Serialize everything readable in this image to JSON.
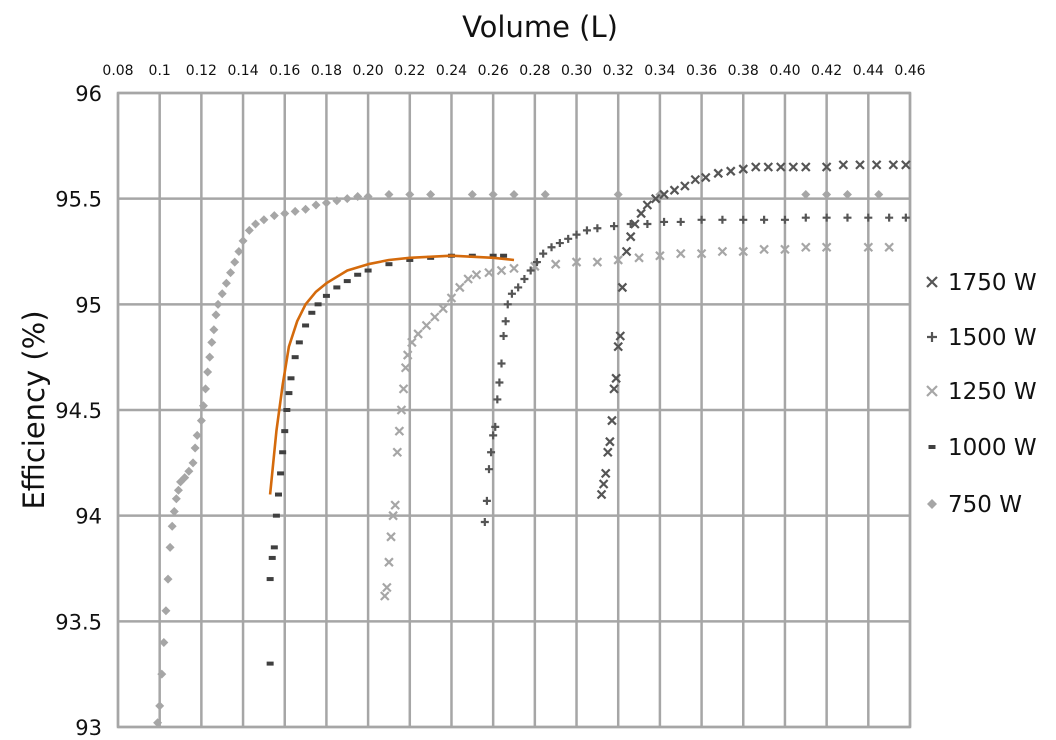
{
  "chart_data": {
    "type": "scatter",
    "title": "",
    "xlabel": "Volume (L)",
    "ylabel": "Efficiency (%)",
    "x_axis_position": "top",
    "xlim": [
      0.08,
      0.46
    ],
    "ylim": [
      93,
      96
    ],
    "x_ticks": [
      "0.08",
      "0.1",
      "0.12",
      "0.14",
      "0.16",
      "0.18",
      "0.20",
      "0.22",
      "0.24",
      "0.26",
      "0.28",
      "0.30",
      "0.32",
      "0.34",
      "0.36",
      "0.38",
      "0.40",
      "0.42",
      "0.44",
      "0.46"
    ],
    "y_ticks": [
      "93",
      "93.5",
      "94",
      "94.5",
      "95",
      "95.5",
      "96"
    ],
    "grid": true,
    "legend_position": "right",
    "series": [
      {
        "name": "1750 W",
        "marker": "x",
        "color": "#555555",
        "points": [
          [
            0.312,
            94.1
          ],
          [
            0.313,
            94.15
          ],
          [
            0.314,
            94.2
          ],
          [
            0.315,
            94.3
          ],
          [
            0.316,
            94.35
          ],
          [
            0.317,
            94.45
          ],
          [
            0.318,
            94.6
          ],
          [
            0.319,
            94.65
          ],
          [
            0.32,
            94.8
          ],
          [
            0.321,
            94.85
          ],
          [
            0.322,
            95.08
          ],
          [
            0.324,
            95.25
          ],
          [
            0.326,
            95.32
          ],
          [
            0.328,
            95.38
          ],
          [
            0.331,
            95.43
          ],
          [
            0.334,
            95.47
          ],
          [
            0.338,
            95.5
          ],
          [
            0.342,
            95.52
          ],
          [
            0.347,
            95.54
          ],
          [
            0.352,
            95.56
          ],
          [
            0.357,
            95.59
          ],
          [
            0.362,
            95.6
          ],
          [
            0.368,
            95.62
          ],
          [
            0.374,
            95.63
          ],
          [
            0.38,
            95.64
          ],
          [
            0.386,
            95.65
          ],
          [
            0.392,
            95.65
          ],
          [
            0.398,
            95.65
          ],
          [
            0.404,
            95.65
          ],
          [
            0.41,
            95.65
          ],
          [
            0.42,
            95.65
          ],
          [
            0.428,
            95.66
          ],
          [
            0.436,
            95.66
          ],
          [
            0.444,
            95.66
          ],
          [
            0.452,
            95.66
          ],
          [
            0.458,
            95.66
          ]
        ]
      },
      {
        "name": "1500 W",
        "marker": "plus",
        "color": "#555555",
        "points": [
          [
            0.256,
            93.97
          ],
          [
            0.257,
            94.07
          ],
          [
            0.258,
            94.22
          ],
          [
            0.259,
            94.3
          ],
          [
            0.26,
            94.38
          ],
          [
            0.261,
            94.42
          ],
          [
            0.262,
            94.55
          ],
          [
            0.263,
            94.63
          ],
          [
            0.264,
            94.72
          ],
          [
            0.265,
            94.85
          ],
          [
            0.266,
            94.92
          ],
          [
            0.267,
            95.0
          ],
          [
            0.269,
            95.05
          ],
          [
            0.272,
            95.08
          ],
          [
            0.275,
            95.12
          ],
          [
            0.278,
            95.16
          ],
          [
            0.281,
            95.2
          ],
          [
            0.284,
            95.24
          ],
          [
            0.288,
            95.27
          ],
          [
            0.292,
            95.29
          ],
          [
            0.296,
            95.31
          ],
          [
            0.3,
            95.33
          ],
          [
            0.305,
            95.35
          ],
          [
            0.31,
            95.36
          ],
          [
            0.318,
            95.37
          ],
          [
            0.326,
            95.38
          ],
          [
            0.334,
            95.38
          ],
          [
            0.342,
            95.39
          ],
          [
            0.35,
            95.39
          ],
          [
            0.36,
            95.4
          ],
          [
            0.37,
            95.4
          ],
          [
            0.38,
            95.4
          ],
          [
            0.39,
            95.4
          ],
          [
            0.4,
            95.4
          ],
          [
            0.41,
            95.41
          ],
          [
            0.42,
            95.41
          ],
          [
            0.43,
            95.41
          ],
          [
            0.44,
            95.41
          ],
          [
            0.45,
            95.41
          ],
          [
            0.458,
            95.41
          ]
        ]
      },
      {
        "name": "1250 W",
        "marker": "x",
        "color": "#a6a6a6",
        "points": [
          [
            0.208,
            93.62
          ],
          [
            0.209,
            93.66
          ],
          [
            0.21,
            93.78
          ],
          [
            0.211,
            93.9
          ],
          [
            0.212,
            94.0
          ],
          [
            0.213,
            94.05
          ],
          [
            0.214,
            94.3
          ],
          [
            0.215,
            94.4
          ],
          [
            0.216,
            94.5
          ],
          [
            0.217,
            94.6
          ],
          [
            0.218,
            94.7
          ],
          [
            0.219,
            94.76
          ],
          [
            0.221,
            94.82
          ],
          [
            0.224,
            94.86
          ],
          [
            0.228,
            94.9
          ],
          [
            0.232,
            94.94
          ],
          [
            0.236,
            94.98
          ],
          [
            0.24,
            95.03
          ],
          [
            0.244,
            95.08
          ],
          [
            0.248,
            95.12
          ],
          [
            0.252,
            95.14
          ],
          [
            0.258,
            95.15
          ],
          [
            0.264,
            95.16
          ],
          [
            0.27,
            95.17
          ],
          [
            0.28,
            95.18
          ],
          [
            0.29,
            95.19
          ],
          [
            0.3,
            95.2
          ],
          [
            0.31,
            95.2
          ],
          [
            0.32,
            95.21
          ],
          [
            0.33,
            95.22
          ],
          [
            0.34,
            95.23
          ],
          [
            0.35,
            95.24
          ],
          [
            0.36,
            95.24
          ],
          [
            0.37,
            95.25
          ],
          [
            0.38,
            95.25
          ],
          [
            0.39,
            95.26
          ],
          [
            0.4,
            95.26
          ],
          [
            0.41,
            95.27
          ],
          [
            0.42,
            95.27
          ],
          [
            0.44,
            95.27
          ],
          [
            0.45,
            95.27
          ]
        ]
      },
      {
        "name": "1000 W",
        "marker": "dash",
        "color": "#404040",
        "points": [
          [
            0.153,
            93.3
          ],
          [
            0.153,
            93.7
          ],
          [
            0.154,
            93.8
          ],
          [
            0.155,
            93.85
          ],
          [
            0.156,
            94.0
          ],
          [
            0.157,
            94.1
          ],
          [
            0.158,
            94.2
          ],
          [
            0.159,
            94.3
          ],
          [
            0.16,
            94.4
          ],
          [
            0.161,
            94.5
          ],
          [
            0.162,
            94.58
          ],
          [
            0.163,
            94.65
          ],
          [
            0.165,
            94.75
          ],
          [
            0.167,
            94.82
          ],
          [
            0.17,
            94.9
          ],
          [
            0.173,
            94.96
          ],
          [
            0.176,
            95.0
          ],
          [
            0.18,
            95.04
          ],
          [
            0.185,
            95.08
          ],
          [
            0.19,
            95.11
          ],
          [
            0.195,
            95.14
          ],
          [
            0.2,
            95.16
          ],
          [
            0.21,
            95.19
          ],
          [
            0.22,
            95.21
          ],
          [
            0.23,
            95.22
          ],
          [
            0.24,
            95.23
          ],
          [
            0.25,
            95.23
          ],
          [
            0.26,
            95.23
          ],
          [
            0.265,
            95.23
          ]
        ]
      },
      {
        "name": "750 W",
        "marker": "diamond",
        "color": "#a6a6a6",
        "points": [
          [
            0.099,
            93.02
          ],
          [
            0.1,
            93.1
          ],
          [
            0.101,
            93.25
          ],
          [
            0.102,
            93.4
          ],
          [
            0.103,
            93.55
          ],
          [
            0.104,
            93.7
          ],
          [
            0.105,
            93.85
          ],
          [
            0.106,
            93.95
          ],
          [
            0.107,
            94.02
          ],
          [
            0.108,
            94.08
          ],
          [
            0.109,
            94.12
          ],
          [
            0.11,
            94.16
          ],
          [
            0.112,
            94.18
          ],
          [
            0.114,
            94.21
          ],
          [
            0.116,
            94.25
          ],
          [
            0.117,
            94.32
          ],
          [
            0.118,
            94.38
          ],
          [
            0.12,
            94.45
          ],
          [
            0.121,
            94.52
          ],
          [
            0.122,
            94.6
          ],
          [
            0.123,
            94.68
          ],
          [
            0.124,
            94.75
          ],
          [
            0.125,
            94.82
          ],
          [
            0.126,
            94.88
          ],
          [
            0.127,
            94.95
          ],
          [
            0.128,
            95.0
          ],
          [
            0.13,
            95.05
          ],
          [
            0.132,
            95.1
          ],
          [
            0.134,
            95.15
          ],
          [
            0.136,
            95.2
          ],
          [
            0.138,
            95.25
          ],
          [
            0.14,
            95.3
          ],
          [
            0.143,
            95.35
          ],
          [
            0.146,
            95.38
          ],
          [
            0.15,
            95.4
          ],
          [
            0.155,
            95.42
          ],
          [
            0.16,
            95.43
          ],
          [
            0.165,
            95.44
          ],
          [
            0.17,
            95.45
          ],
          [
            0.175,
            95.47
          ],
          [
            0.18,
            95.48
          ],
          [
            0.185,
            95.49
          ],
          [
            0.19,
            95.5
          ],
          [
            0.195,
            95.51
          ],
          [
            0.2,
            95.51
          ],
          [
            0.21,
            95.52
          ],
          [
            0.22,
            95.52
          ],
          [
            0.23,
            95.52
          ],
          [
            0.25,
            95.52
          ],
          [
            0.26,
            95.52
          ],
          [
            0.27,
            95.52
          ],
          [
            0.285,
            95.52
          ],
          [
            0.32,
            95.52
          ],
          [
            0.34,
            95.52
          ],
          [
            0.41,
            95.52
          ],
          [
            0.42,
            95.52
          ],
          [
            0.43,
            95.52
          ],
          [
            0.445,
            95.52
          ]
        ]
      }
    ],
    "fit_line": {
      "color": "#d46a0c",
      "points": [
        [
          0.153,
          94.1
        ],
        [
          0.156,
          94.4
        ],
        [
          0.159,
          94.62
        ],
        [
          0.162,
          94.8
        ],
        [
          0.166,
          94.92
        ],
        [
          0.17,
          95.0
        ],
        [
          0.175,
          95.06
        ],
        [
          0.18,
          95.1
        ],
        [
          0.19,
          95.16
        ],
        [
          0.2,
          95.19
        ],
        [
          0.21,
          95.21
        ],
        [
          0.22,
          95.22
        ],
        [
          0.24,
          95.23
        ],
        [
          0.26,
          95.22
        ],
        [
          0.27,
          95.21
        ]
      ]
    }
  }
}
